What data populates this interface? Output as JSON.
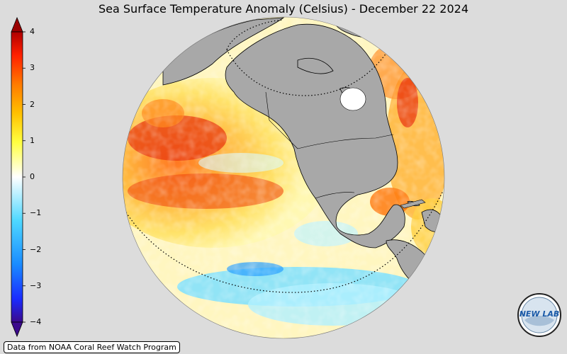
{
  "title": "Sea Surface Temperature Anomaly (Celsius) - December 22 2024",
  "colorbar": {
    "ticks": [
      "4",
      "3",
      "2",
      "1",
      "0",
      "−1",
      "−2",
      "−3",
      "−4"
    ],
    "min": -4,
    "max": 4,
    "colors": [
      "#3b0a8c",
      "#1a2cff",
      "#1a8cff",
      "#4fd8ff",
      "#ffffff",
      "#ffff40",
      "#ffc000",
      "#ff7a00",
      "#ff2000",
      "#b00000"
    ]
  },
  "map": {
    "projection": "orthographic",
    "land_color": "#a8a8a8",
    "ocean_colors": [
      "#ffffff",
      "#ffff66",
      "#ffd040",
      "#ff9020",
      "#e83010",
      "#a0f0ff",
      "#40b0ff"
    ]
  },
  "credit": "Data from NOAA Coral Reef Watch Program",
  "logo": {
    "text": "NEW LAB",
    "icon": "nexlab-logo-icon"
  }
}
